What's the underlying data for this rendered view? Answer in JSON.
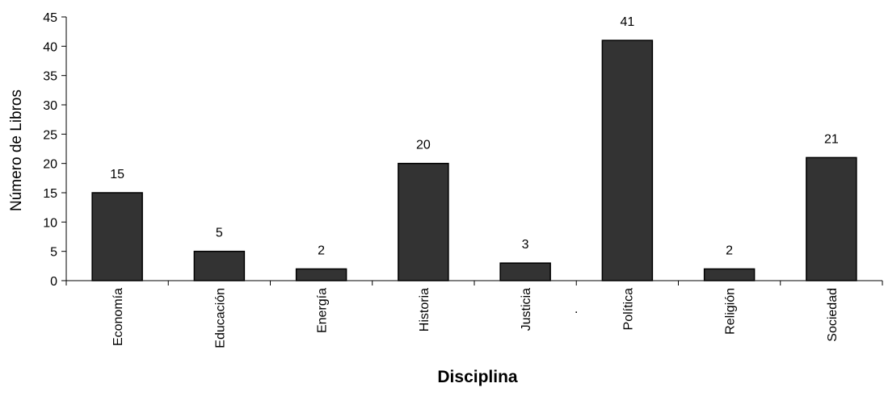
{
  "chart_data": {
    "type": "bar",
    "categories": [
      "Economía",
      "Educación",
      "Energía",
      "Historia",
      "Justicia",
      "Política",
      "Religión",
      "Sociedad"
    ],
    "values": [
      15,
      5,
      2,
      20,
      3,
      41,
      2,
      21
    ],
    "data_labels": [
      "15",
      "5",
      "2",
      "20",
      "3",
      "41",
      "2",
      "21"
    ],
    "xlabel": "Disciplina",
    "ylabel": "Número de Libros",
    "ylim": [
      0,
      45
    ],
    "yticks": [
      0,
      5,
      10,
      15,
      20,
      25,
      30,
      35,
      40,
      45
    ],
    "ytick_labels": [
      "0",
      "5",
      "10",
      "15",
      "20",
      "25",
      "30",
      "35",
      "40",
      "45"
    ],
    "grid": false,
    "legend": "none",
    "stray_mark": ".",
    "bar_color": "#333333",
    "bar_edge_color": "#000000",
    "axis_color": "#000000"
  }
}
